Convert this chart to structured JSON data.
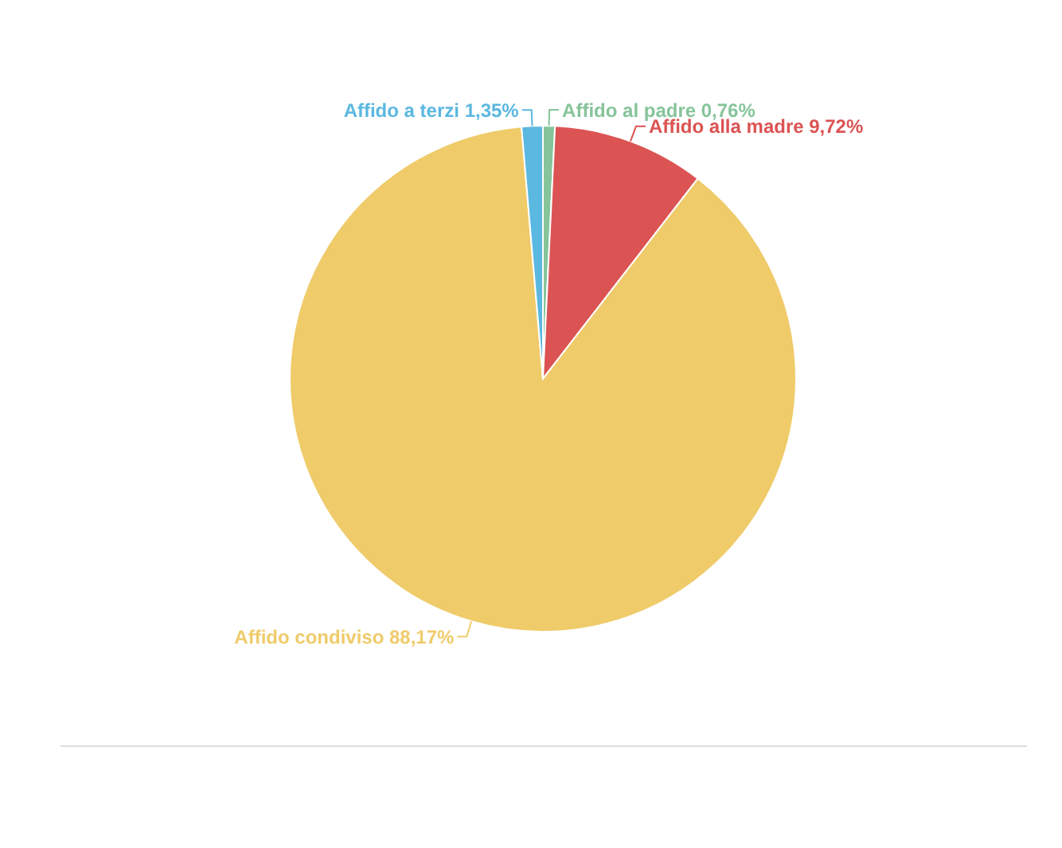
{
  "chart_data": {
    "type": "pie",
    "categories": [
      "Affido al padre",
      "Affido alla madre",
      "Affido condiviso",
      "Affido a terzi"
    ],
    "values": [
      0.76,
      9.72,
      88.17,
      1.35
    ],
    "colors": [
      "#86c49a",
      "#dc5353",
      "#efcb6a",
      "#5bb8e0"
    ],
    "value_labels": [
      "0,76%",
      "9,72%",
      "88,17%",
      "1,35%"
    ]
  }
}
